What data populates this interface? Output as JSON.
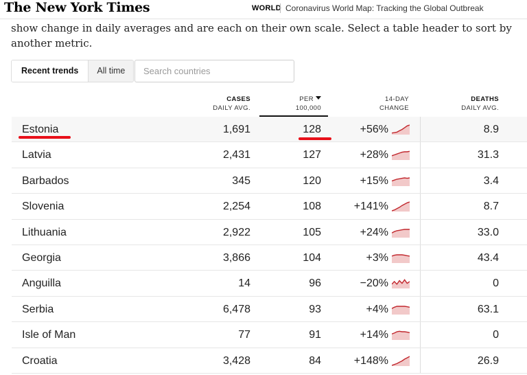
{
  "header": {
    "logo": "The New York Times",
    "section": "WORLD",
    "headline": "Coronavirus World Map: Tracking the Global Outbreak"
  },
  "intro_text": "show change in daily averages and are each on their own scale. Select a table header to sort by another metric.",
  "toggle": {
    "recent": "Recent trends",
    "alltime": "All time"
  },
  "search": {
    "placeholder": "Search countries"
  },
  "columns": {
    "cases": [
      "CASES",
      "DAILY AVG."
    ],
    "per": [
      "PER",
      "100,000"
    ],
    "change": [
      "14-DAY",
      "CHANGE"
    ],
    "deaths": [
      "DEATHS",
      "DAILY AVG."
    ]
  },
  "icons": {
    "sort": "sort-descending-icon",
    "trend": "sparkline-icon"
  },
  "colors": {
    "spark_line": "#c1272d",
    "spark_fill": "#f2c9c9",
    "highlight": "#e8101a"
  },
  "rows": [
    {
      "country": "Estonia",
      "cases": "1,691",
      "per": "128",
      "change": "+56%",
      "deaths": "8.9",
      "trend": [
        0.1,
        0.15,
        0.2,
        0.35,
        0.5,
        0.7,
        0.9,
        1.0
      ]
    },
    {
      "country": "Latvia",
      "cases": "2,431",
      "per": "127",
      "change": "+28%",
      "deaths": "31.3",
      "trend": [
        0.4,
        0.5,
        0.6,
        0.7,
        0.8,
        0.85,
        0.85,
        0.9
      ]
    },
    {
      "country": "Barbados",
      "cases": "345",
      "per": "120",
      "change": "+15%",
      "deaths": "3.4",
      "trend": [
        0.5,
        0.6,
        0.7,
        0.75,
        0.8,
        0.85,
        0.8,
        0.85
      ]
    },
    {
      "country": "Slovenia",
      "cases": "2,254",
      "per": "108",
      "change": "+141%",
      "deaths": "8.7",
      "trend": [
        0.0,
        0.1,
        0.25,
        0.4,
        0.6,
        0.75,
        0.9,
        1.0
      ]
    },
    {
      "country": "Lithuania",
      "cases": "2,922",
      "per": "105",
      "change": "+24%",
      "deaths": "33.0",
      "trend": [
        0.45,
        0.6,
        0.7,
        0.75,
        0.8,
        0.85,
        0.85,
        0.85
      ]
    },
    {
      "country": "Georgia",
      "cases": "3,866",
      "per": "104",
      "change": "+3%",
      "deaths": "43.4",
      "trend": [
        0.7,
        0.8,
        0.85,
        0.85,
        0.85,
        0.8,
        0.75,
        0.7
      ]
    },
    {
      "country": "Anguilla",
      "cases": "14",
      "per": "96",
      "change": "−20%",
      "deaths": "0",
      "trend": [
        0.4,
        0.7,
        0.4,
        0.8,
        0.5,
        0.9,
        0.5,
        0.7
      ]
    },
    {
      "country": "Serbia",
      "cases": "6,478",
      "per": "93",
      "change": "+4%",
      "deaths": "63.1",
      "trend": [
        0.6,
        0.75,
        0.85,
        0.85,
        0.85,
        0.85,
        0.8,
        0.75
      ]
    },
    {
      "country": "Isle of Man",
      "cases": "77",
      "per": "91",
      "change": "+14%",
      "deaths": "0",
      "trend": [
        0.6,
        0.7,
        0.85,
        0.9,
        0.85,
        0.85,
        0.8,
        0.75
      ]
    },
    {
      "country": "Croatia",
      "cases": "3,428",
      "per": "84",
      "change": "+148%",
      "deaths": "26.9",
      "trend": [
        0.0,
        0.1,
        0.2,
        0.35,
        0.5,
        0.7,
        0.85,
        1.0
      ]
    }
  ]
}
